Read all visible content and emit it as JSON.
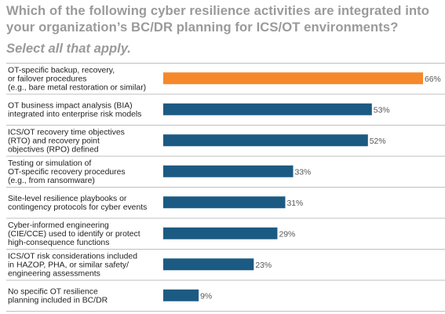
{
  "header": {
    "title": "Which of the following cyber resilience activities are integrated into your organization’s BC/DR planning for ICS/OT environments?",
    "subtitle": "Select all that apply."
  },
  "colors": {
    "highlight": "#f5882a",
    "bar": "#1b5a82",
    "divider": "#bfbfbf",
    "title": "#9a9a9a"
  },
  "chart_data": {
    "type": "bar",
    "orientation": "horizontal",
    "title": "Which of the following cyber resilience activities are integrated into your organization’s BC/DR planning for ICS/OT environments?",
    "subtitle": "Select all that apply.",
    "value_suffix": "%",
    "xlim": [
      0,
      66
    ],
    "grid": false,
    "categories": [
      [
        "OT-specific backup, recovery,",
        "or failover procedures",
        "(e.g., bare metal restoration or similar)"
      ],
      [
        "OT business impact analysis (BIA)",
        "integrated into enterprise risk models"
      ],
      [
        "ICS/OT recovery time objectives",
        "(RTO) and recovery point",
        "objectives (RPO) defined"
      ],
      [
        "Testing or simulation of",
        "OT-specific recovery procedures",
        "(e.g., from ransomware)"
      ],
      [
        "Site-level resilience playbooks or",
        "contingency protocols for cyber events"
      ],
      [
        "Cyber-informed engineering",
        "(CIE/CCE) used to identify or protect",
        "high-consequence functions"
      ],
      [
        "ICS/OT risk considerations included",
        "in HAZOP, PHA, or similar safety/",
        "engineering assessments"
      ],
      [
        "No specific OT resilience",
        "planning included in BC/DR"
      ]
    ],
    "values": [
      66,
      53,
      52,
      33,
      31,
      29,
      23,
      9
    ],
    "highlight_index": 0
  }
}
